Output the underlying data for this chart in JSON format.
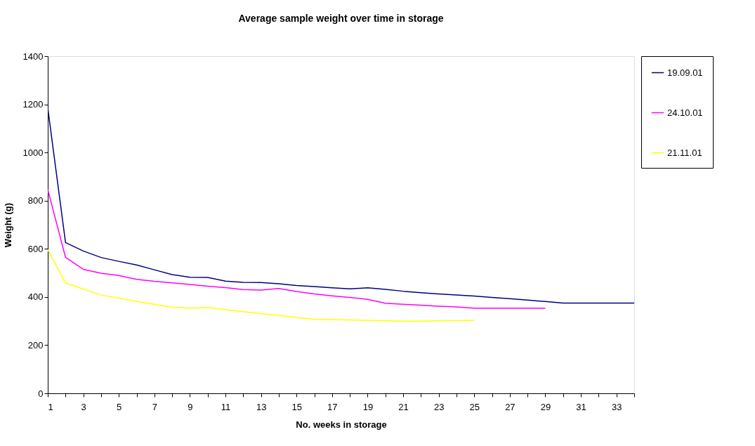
{
  "chart_data": {
    "type": "line",
    "title": "Average sample weight over time in storage",
    "xlabel": "No. weeks in storage",
    "ylabel": "Weight (g)",
    "x": [
      1,
      2,
      3,
      4,
      5,
      6,
      7,
      8,
      9,
      10,
      11,
      12,
      13,
      14,
      15,
      16,
      17,
      18,
      19,
      20,
      21,
      22,
      23,
      24,
      25,
      26,
      27,
      28,
      29,
      30,
      31,
      32,
      33,
      34
    ],
    "series": [
      {
        "name": "19.09.01",
        "color": "#000080",
        "values": [
          1185,
          626,
          591,
          564,
          548,
          533,
          513,
          493,
          482,
          481,
          466,
          461,
          460,
          455,
          448,
          443,
          438,
          434,
          438,
          432,
          424,
          418,
          413,
          408,
          404,
          398,
          393,
          387,
          381,
          375,
          375,
          375,
          375,
          375
        ]
      },
      {
        "name": "24.10.01",
        "color": "#ff00ff",
        "values": [
          846,
          565,
          515,
          499,
          489,
          473,
          465,
          459,
          452,
          445,
          439,
          431,
          429,
          435,
          423,
          413,
          405,
          398,
          390,
          374,
          370,
          366,
          362,
          359,
          354,
          354,
          354,
          354,
          353,
          null,
          null,
          null,
          null,
          null
        ]
      },
      {
        "name": "21.11.01",
        "color": "#ffff00",
        "values": [
          596,
          458,
          433,
          408,
          395,
          382,
          370,
          357,
          354,
          356,
          348,
          339,
          331,
          324,
          315,
          308,
          306,
          305,
          303,
          301,
          300,
          300,
          301,
          302,
          303,
          null,
          null,
          null,
          null,
          null,
          null,
          null,
          null,
          null
        ]
      }
    ],
    "xlim": [
      1,
      34
    ],
    "xticks": [
      1,
      {
        "value": 2,
        "label": null
      },
      3,
      {
        "value": 4,
        "label": null
      },
      5,
      {
        "value": 6,
        "label": null
      },
      7,
      {
        "value": 8,
        "label": null
      },
      9,
      {
        "value": 10,
        "label": null
      },
      11,
      {
        "value": 12,
        "label": null
      },
      13,
      {
        "value": 14,
        "label": null
      },
      15,
      {
        "value": 16,
        "label": null
      },
      17,
      {
        "value": 18,
        "label": null
      },
      19,
      {
        "value": 20,
        "label": null
      },
      21,
      {
        "value": 22,
        "label": null
      },
      23,
      {
        "value": 24,
        "label": null
      },
      25,
      {
        "value": 26,
        "label": null
      },
      27,
      {
        "value": 28,
        "label": null
      },
      29,
      {
        "value": 30,
        "label": null
      },
      31,
      {
        "value": 32,
        "label": null
      },
      33,
      {
        "value": 34,
        "label": null
      }
    ],
    "ylim": [
      0,
      1400
    ],
    "yticks": [
      0,
      200,
      400,
      600,
      800,
      1000,
      1200,
      1400
    ],
    "grid": false,
    "legend": "right",
    "marker": "none",
    "line_style": "solid"
  }
}
